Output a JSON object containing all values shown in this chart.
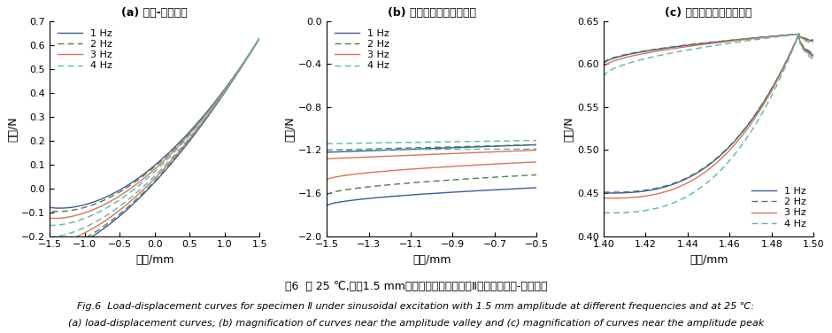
{
  "colors": {
    "1hz": "#3d5a9e",
    "2hz": "#4e7c4e",
    "3hz": "#d97355",
    "4hz": "#55b8b0"
  },
  "subplot_titles": [
    "(a) 载荷-位移曲线",
    "(b) 振幅谷値附近曲线放大",
    "(c) 振幅峰値附近曲线放大"
  ],
  "ylabel": "载荷/N",
  "xlabel": "位移/mm",
  "legend_labels": [
    "1 Hz",
    "2 Hz",
    "3 Hz",
    "4 Hz"
  ],
  "fig_title_zh": "图6  在 25 ℃,振庅1.5 mm、不同频率激励作用下Ⅱ类试样的载荷-位移曲线",
  "fig_title_en1": "Fig.6  Load-displacement curves for specimen Ⅱ under sinusoidal excitation with 1.5 mm amplitude at different frequencies and at 25 ℃:",
  "fig_title_en2": "(a) load-displacement curves; (b) magnification of curves near the amplitude valley and (c) magnification of curves near the amplitude peak",
  "ax1": {
    "xlim": [
      -1.5,
      1.5
    ],
    "ylim": [
      -0.2,
      0.7
    ],
    "yticks": [
      -0.2,
      -0.1,
      0.0,
      0.1,
      0.2,
      0.3,
      0.4,
      0.5,
      0.6,
      0.7
    ],
    "xticks": [
      -1.5,
      -1.0,
      -0.5,
      0.0,
      0.5,
      1.0,
      1.5
    ]
  },
  "ax2": {
    "xlim": [
      -1.5,
      -0.5
    ],
    "ylim": [
      -2.0,
      0.0
    ],
    "yticks": [
      -2.0,
      -1.6,
      -1.2,
      -0.8,
      -0.4,
      0.0
    ],
    "xticks": [
      -1.5,
      -1.3,
      -1.1,
      -0.9,
      -0.7,
      -0.5
    ]
  },
  "ax3": {
    "xlim": [
      1.4,
      1.5
    ],
    "ylim": [
      0.4,
      0.65
    ],
    "yticks": [
      0.4,
      0.45,
      0.5,
      0.55,
      0.6,
      0.65
    ],
    "xticks": [
      1.4,
      1.42,
      1.44,
      1.46,
      1.48,
      1.5
    ]
  }
}
